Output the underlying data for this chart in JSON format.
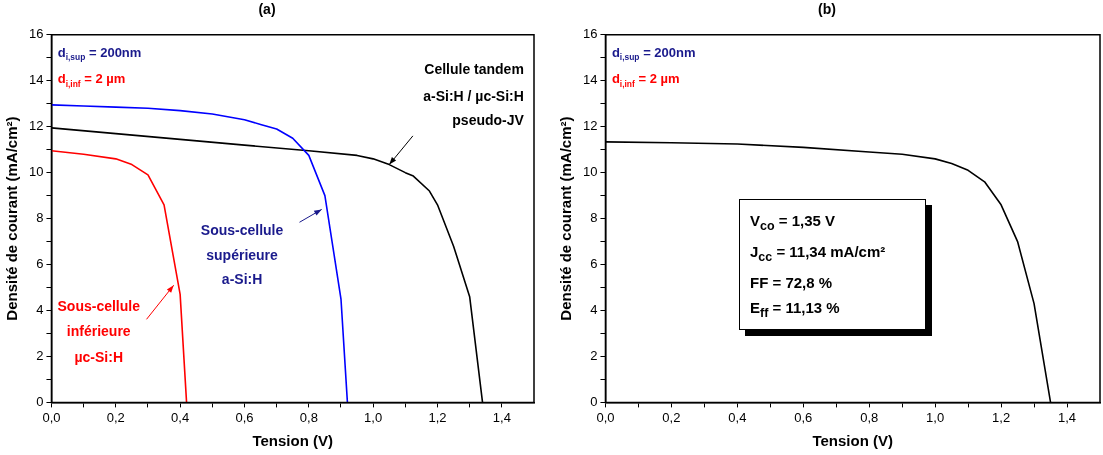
{
  "chart_data": [
    {
      "type": "line",
      "title": "(a)",
      "xlabel": "Tension (V)",
      "ylabel": "Densité de courant (mA/cm²)",
      "xlim": [
        0,
        1.5
      ],
      "xticks": [
        {
          "value": 0,
          "label": "0,0"
        },
        {
          "value": 0.1,
          "label": null
        },
        {
          "value": 0.2,
          "label": "0,2"
        },
        {
          "value": 0.3,
          "label": null
        },
        {
          "value": 0.4,
          "label": "0,4"
        },
        {
          "value": 0.5,
          "label": null
        },
        {
          "value": 0.6,
          "label": "0,6"
        },
        {
          "value": 0.7,
          "label": null
        },
        {
          "value": 0.8,
          "label": "0,8"
        },
        {
          "value": 0.9,
          "label": null
        },
        {
          "value": 1.0,
          "label": "1,0"
        },
        {
          "value": 1.1,
          "label": null
        },
        {
          "value": 1.2,
          "label": "1,2"
        },
        {
          "value": 1.3,
          "label": null
        },
        {
          "value": 1.4,
          "label": "1,4"
        }
      ],
      "ylim": [
        0,
        16
      ],
      "yticks": [
        0,
        {
          "value": 1,
          "label": null
        },
        2,
        {
          "value": 3,
          "label": null
        },
        4,
        {
          "value": 5,
          "label": null
        },
        6,
        {
          "value": 7,
          "label": null
        },
        8,
        {
          "value": 9,
          "label": null
        },
        10,
        {
          "value": 11,
          "label": null
        },
        12,
        {
          "value": 13,
          "label": null
        },
        14,
        {
          "value": 15,
          "label": null
        },
        16
      ],
      "grid": false,
      "legend": false,
      "marker": "none",
      "line_style": "solid",
      "annotations": [
        "d$_{i,sup}$ = 200nm",
        "d$_{i,inf}$ = 2 µm",
        {
          "text": "Sous-cellule\ninférieure\nµc-Si:H",
          "x": 0.38,
          "y": 5.1
        },
        {
          "text": "Sous-cellule\nsupérieure\na-Si:H",
          "x": 0.84,
          "y": 8.4
        },
        {
          "text": "Cellule tandem\na-Si:H / µc-Si:H\npseudo-JV",
          "x": 1.05,
          "y": 10.35
        }
      ],
      "series": [
        {
          "color": "#ff0000",
          "x": [
            0,
            0.1,
            0.2,
            0.25,
            0.3,
            0.35,
            0.4,
            0.42
          ],
          "values": [
            10.95,
            10.8,
            10.6,
            10.35,
            9.9,
            8.6,
            4.7,
            0
          ]
        },
        {
          "color": "#0000ff",
          "x": [
            0,
            0.1,
            0.2,
            0.3,
            0.4,
            0.5,
            0.6,
            0.65,
            0.7,
            0.75,
            0.8,
            0.85,
            0.9,
            0.92
          ],
          "values": [
            12.95,
            12.9,
            12.85,
            12.8,
            12.7,
            12.55,
            12.3,
            12.1,
            11.9,
            11.5,
            10.75,
            9.0,
            4.5,
            0
          ]
        },
        {
          "color": "#000000",
          "x": [
            0,
            0.2,
            0.4,
            0.6,
            0.8,
            0.95,
            1.0,
            1.05,
            1.1,
            1.125,
            1.175,
            1.2,
            1.25,
            1.3,
            1.34
          ],
          "values": [
            11.95,
            11.7,
            11.45,
            11.2,
            10.95,
            10.75,
            10.6,
            10.35,
            10.0,
            9.85,
            9.2,
            8.6,
            6.8,
            4.6,
            0
          ]
        }
      ]
    },
    {
      "type": "line",
      "title": "(b)",
      "xlabel": "Tension (V)",
      "ylabel": "Densité de courant (mA/cm²)",
      "xlim": [
        0,
        1.5
      ],
      "xticks": [
        {
          "value": 0,
          "label": "0,0"
        },
        {
          "value": 0.1,
          "label": null
        },
        {
          "value": 0.2,
          "label": "0,2"
        },
        {
          "value": 0.3,
          "label": null
        },
        {
          "value": 0.4,
          "label": "0,4"
        },
        {
          "value": 0.5,
          "label": null
        },
        {
          "value": 0.6,
          "label": "0,6"
        },
        {
          "value": 0.7,
          "label": null
        },
        {
          "value": 0.8,
          "label": "0,8"
        },
        {
          "value": 0.9,
          "label": null
        },
        {
          "value": 1.0,
          "label": "1,0"
        },
        {
          "value": 1.1,
          "label": null
        },
        {
          "value": 1.2,
          "label": "1,2"
        },
        {
          "value": 1.3,
          "label": null
        },
        {
          "value": 1.4,
          "label": "1,4"
        }
      ],
      "ylim": [
        0,
        16
      ],
      "yticks": [
        0,
        {
          "value": 1,
          "label": null
        },
        2,
        {
          "value": 3,
          "label": null
        },
        4,
        {
          "value": 5,
          "label": null
        },
        6,
        {
          "value": 7,
          "label": null
        },
        8,
        {
          "value": 9,
          "label": null
        },
        10,
        {
          "value": 11,
          "label": null
        },
        12,
        {
          "value": 13,
          "label": null
        },
        14,
        {
          "value": 15,
          "label": null
        },
        16
      ],
      "grid": false,
      "legend": false,
      "marker": "none",
      "line_style": "solid",
      "annotations": [
        "d$_{i,sup}$ = 200nm",
        "d$_{i,inf}$ = 2 µm",
        "V$_{co}$ = 1,35 V",
        "J$_{cc}$ = 11,34 mA/cm²",
        "FF = 72,8 %",
        "E$_{ff}$ = 11,13 %"
      ],
      "series": [
        {
          "color": "#000000",
          "x": [
            0,
            0.2,
            0.4,
            0.6,
            0.8,
            0.9,
            1.0,
            1.05,
            1.1,
            1.15,
            1.2,
            1.25,
            1.3,
            1.35
          ],
          "values": [
            11.34,
            11.3,
            11.25,
            11.1,
            10.9,
            10.8,
            10.6,
            10.4,
            10.1,
            9.6,
            8.6,
            7.0,
            4.3,
            0
          ]
        }
      ]
    }
  ]
}
